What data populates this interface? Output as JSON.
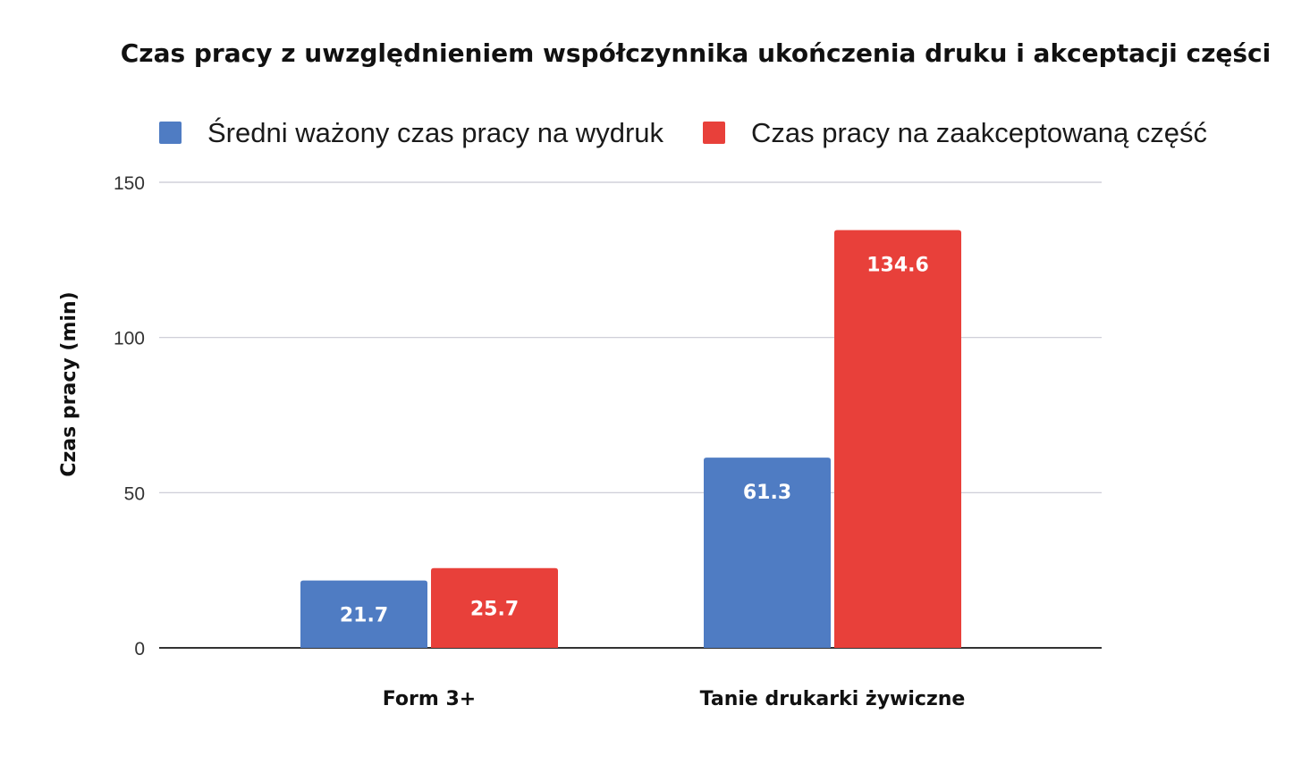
{
  "chart_data": {
    "type": "bar",
    "title": "Czas pracy z uwzględnieniem współczynnika ukończenia druku i akceptacji części",
    "xlabel": "",
    "ylabel": "Czas pracy (min)",
    "categories": [
      "Form 3+",
      "Tanie drukarki żywiczne"
    ],
    "series": [
      {
        "name": "Średni ważony czas pracy na wydruk",
        "color": "#4F7CC3",
        "values": [
          21.7,
          61.3
        ],
        "labels": [
          "21.7",
          "61.3"
        ]
      },
      {
        "name": "Czas pracy na zaakceptowaną część",
        "color": "#E8403A",
        "values": [
          25.7,
          134.6
        ],
        "labels": [
          "25.7",
          "134.6"
        ]
      }
    ],
    "ylim": [
      0,
      150
    ],
    "yticks": [
      0,
      50,
      100,
      150
    ],
    "ytick_labels": [
      "0",
      "50",
      "100",
      "150"
    ],
    "grid": true,
    "legend_position": "top"
  }
}
